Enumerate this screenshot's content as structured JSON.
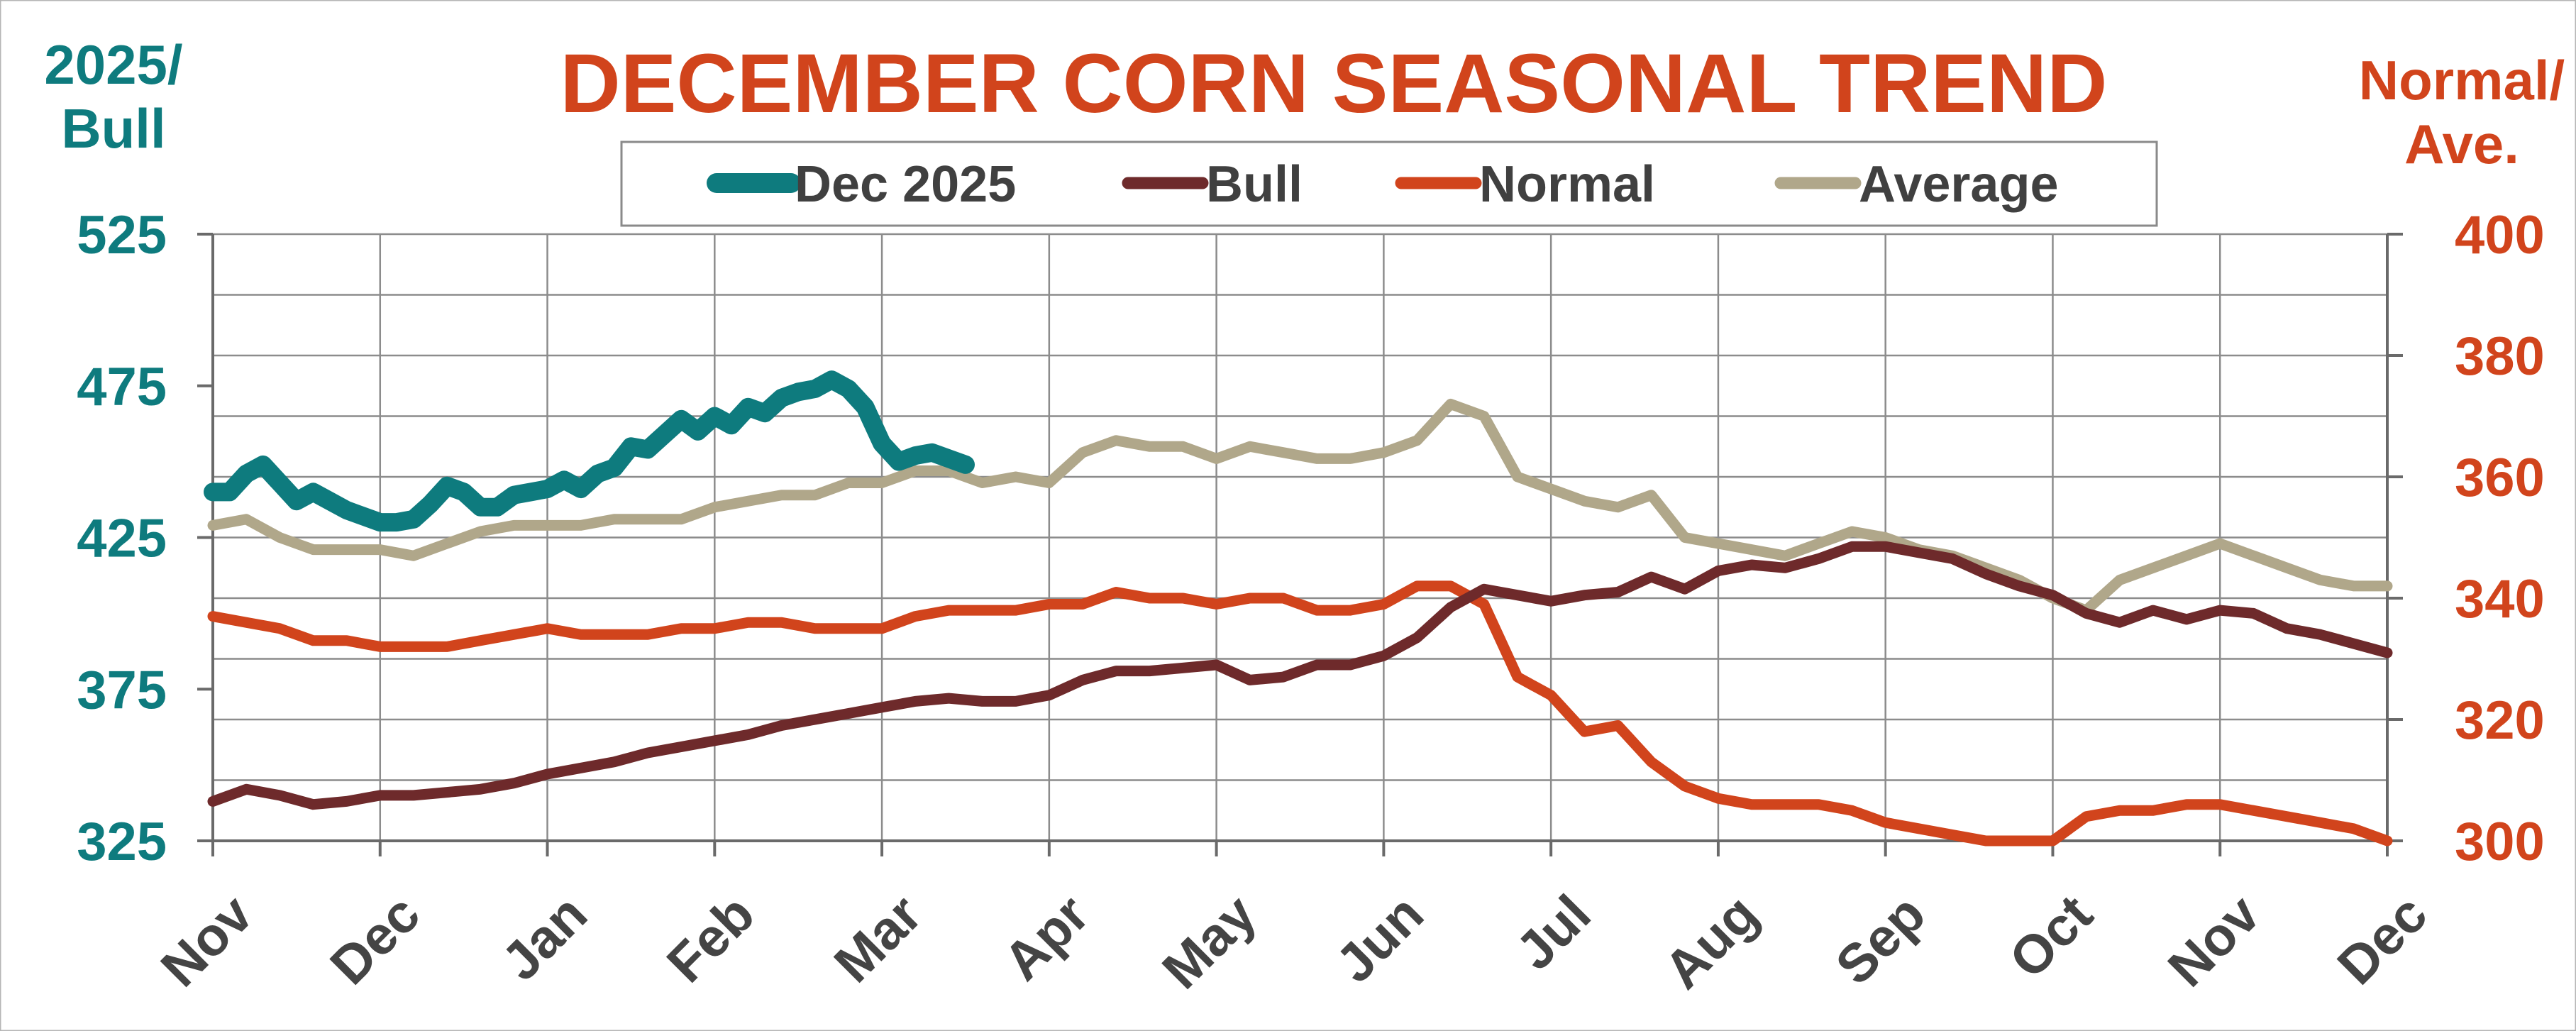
{
  "chart_data": {
    "type": "line",
    "title": "DECEMBER CORN SEASONAL TREND",
    "left_axis": {
      "label_lines": [
        "2025/",
        "Bull"
      ],
      "ylim": [
        325,
        525
      ],
      "ticks": [
        325,
        375,
        425,
        475,
        525
      ],
      "color": "#0e7b7e"
    },
    "right_axis": {
      "label_lines": [
        "Normal/",
        "Ave."
      ],
      "ylim": [
        300,
        400
      ],
      "ticks": [
        300,
        320,
        340,
        360,
        380,
        400
      ],
      "color": "#d1441c"
    },
    "x_ticks": [
      "Nov",
      "Dec",
      "Jan",
      "Feb",
      "Mar",
      "Apr",
      "May",
      "Jun",
      "Jul",
      "Aug",
      "Sep",
      "Oct",
      "Nov",
      "Dec"
    ],
    "grid": true,
    "legend_position": "top",
    "series": [
      {
        "name": "Dec 2025",
        "axis": "left",
        "color": "#0e7b7e",
        "x": [
          0,
          0.1,
          0.2,
          0.3,
          0.4,
          0.5,
          0.6,
          0.7,
          0.8,
          1.0,
          1.1,
          1.2,
          1.3,
          1.4,
          1.5,
          1.6,
          1.7,
          1.8,
          1.9,
          2.0,
          2.1,
          2.2,
          2.3,
          2.4,
          2.5,
          2.6,
          2.7,
          2.8,
          2.9,
          3.0,
          3.1,
          3.2,
          3.3,
          3.4,
          3.5,
          3.6,
          3.7,
          3.8,
          3.9,
          4.0,
          4.1,
          4.2,
          4.3,
          4.5
        ],
        "values": [
          440,
          440,
          446,
          449,
          443,
          437,
          440,
          437,
          434,
          430,
          430,
          431,
          436,
          442,
          440,
          435,
          435,
          439,
          440,
          441,
          444,
          441,
          446,
          448,
          455,
          454,
          459,
          464,
          460,
          465,
          462,
          468,
          466,
          471,
          473,
          474,
          477,
          474,
          468,
          456,
          450,
          452,
          453,
          449
        ]
      },
      {
        "name": "Bull",
        "axis": "left",
        "color": "#6e2a2b",
        "x": [
          0,
          0.2,
          0.4,
          0.6,
          0.8,
          1.0,
          1.2,
          1.4,
          1.6,
          1.8,
          2.0,
          2.2,
          2.4,
          2.6,
          2.8,
          3.0,
          3.2,
          3.4,
          3.6,
          3.8,
          4.0,
          4.2,
          4.4,
          4.6,
          4.8,
          5.0,
          5.2,
          5.4,
          5.6,
          5.8,
          6.0,
          6.2,
          6.4,
          6.6,
          6.8,
          7.0,
          7.2,
          7.4,
          7.6,
          7.8,
          8.0,
          8.2,
          8.4,
          8.6,
          8.8,
          9.0,
          9.2,
          9.4,
          9.6,
          9.8,
          10.0,
          10.2,
          10.4,
          10.6,
          10.8,
          11.0,
          11.2,
          11.4,
          11.6,
          11.8,
          12.0,
          12.2,
          12.4,
          12.6,
          12.8,
          13.0
        ],
        "values": [
          338,
          342,
          340,
          337,
          338,
          340,
          340,
          341,
          342,
          344,
          347,
          349,
          351,
          354,
          356,
          358,
          360,
          363,
          365,
          367,
          369,
          371,
          372,
          371,
          371,
          373,
          378,
          381,
          381,
          382,
          383,
          378,
          379,
          383,
          383,
          386,
          392,
          402,
          408,
          406,
          404,
          406,
          407,
          412,
          408,
          414,
          416,
          415,
          418,
          422,
          422,
          420,
          418,
          413,
          409,
          406,
          400,
          397,
          401,
          398,
          401,
          400,
          395,
          393,
          390,
          387
        ]
      },
      {
        "name": "Normal",
        "axis": "right",
        "color": "#d1441c",
        "x": [
          0,
          0.2,
          0.4,
          0.6,
          0.8,
          1.0,
          1.2,
          1.4,
          1.6,
          1.8,
          2.0,
          2.2,
          2.4,
          2.6,
          2.8,
          3.0,
          3.2,
          3.4,
          3.6,
          3.8,
          4.0,
          4.2,
          4.4,
          4.6,
          4.8,
          5.0,
          5.2,
          5.4,
          5.6,
          5.8,
          6.0,
          6.2,
          6.4,
          6.6,
          6.8,
          7.0,
          7.2,
          7.4,
          7.6,
          7.8,
          8.0,
          8.2,
          8.4,
          8.6,
          8.8,
          9.0,
          9.2,
          9.4,
          9.6,
          9.8,
          10.0,
          10.2,
          10.4,
          10.6,
          10.8,
          11.0,
          11.2,
          11.4,
          11.6,
          11.8,
          12.0,
          12.2,
          12.4,
          12.6,
          12.8,
          13.0
        ],
        "values": [
          337,
          336,
          335,
          333,
          333,
          332,
          332,
          332,
          333,
          334,
          335,
          334,
          334,
          334,
          335,
          335,
          336,
          336,
          335,
          335,
          335,
          337,
          338,
          338,
          338,
          339,
          339,
          341,
          340,
          340,
          339,
          340,
          340,
          338,
          338,
          339,
          342,
          342,
          339,
          327,
          324,
          318,
          319,
          313,
          309,
          307,
          306,
          306,
          306,
          305,
          303,
          302,
          301,
          300,
          300,
          300,
          304,
          305,
          305,
          306,
          306,
          305,
          304,
          303,
          302,
          300
        ]
      },
      {
        "name": "Average",
        "axis": "right",
        "color": "#b0a78a",
        "x": [
          0,
          0.2,
          0.4,
          0.6,
          0.8,
          1.0,
          1.2,
          1.4,
          1.6,
          1.8,
          2.0,
          2.2,
          2.4,
          2.6,
          2.8,
          3.0,
          3.2,
          3.4,
          3.6,
          3.8,
          4.0,
          4.2,
          4.4,
          4.6,
          4.8,
          5.0,
          5.2,
          5.4,
          5.6,
          5.8,
          6.0,
          6.2,
          6.4,
          6.6,
          6.8,
          7.0,
          7.2,
          7.4,
          7.6,
          7.8,
          8.0,
          8.2,
          8.4,
          8.6,
          8.8,
          9.0,
          9.2,
          9.4,
          9.6,
          9.8,
          10.0,
          10.2,
          10.4,
          10.6,
          10.8,
          11.0,
          11.2,
          11.4,
          11.6,
          11.8,
          12.0,
          12.2,
          12.4,
          12.6,
          12.8,
          13.0
        ],
        "values": [
          352,
          353,
          350,
          348,
          348,
          348,
          347,
          349,
          351,
          352,
          352,
          352,
          353,
          353,
          353,
          355,
          356,
          357,
          357,
          359,
          359,
          361,
          361,
          359,
          360,
          359,
          364,
          366,
          365,
          365,
          363,
          365,
          364,
          363,
          363,
          364,
          366,
          372,
          370,
          360,
          358,
          356,
          355,
          357,
          350,
          349,
          348,
          347,
          349,
          351,
          350,
          348,
          347,
          345,
          343,
          340,
          338,
          343,
          345,
          347,
          349,
          347,
          345,
          343,
          342,
          342
        ]
      }
    ]
  },
  "style": {
    "title_color": "#d1441c",
    "tick_label_color": "#444444",
    "grid_color": "#8c8c8c"
  }
}
